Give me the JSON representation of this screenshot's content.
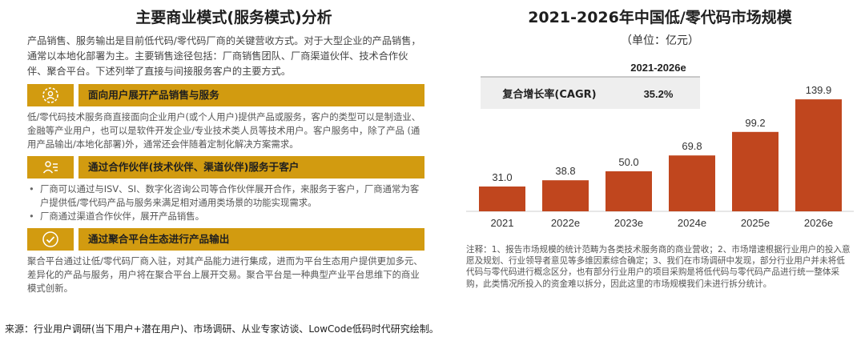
{
  "left": {
    "title": "主要商业模式(服务模式)分析",
    "intro": "产品销售、服务输出是目前低代码/零代码厂商的关键营收方式。对于大型企业的产品销售，通常以本地化部署为主。主要销售途径包括：厂商销售团队、厂商渠道伙伴、技术合作伙伴、聚合平台。下述列举了直接与间接服务客户的主要方式。",
    "sections": [
      {
        "icon": "gear-people-icon",
        "heading": "面向用户展开产品销售与服务",
        "text": "低/零代码技术服务商直接面向企业用户(或个人用户)提供产品或服务，客户的类型可以是制造业、金融等产业用户，也可以是软件开发企业/专业技术类人员等技术用户。客户服务中，除了产品 (通用产品输出/本地化部署)外，通常还会伴随着定制化解决方案需求。"
      },
      {
        "icon": "partner-icon",
        "heading": "通过合作伙伴(技术伙伴、渠道伙伴)服务于客户",
        "bullets": [
          "厂商可以通过与ISV、SI、数字化咨询公司等合作伙伴展开合作，来服务于客户，厂商通常为客户提供低/零代码产品与服务来满足相对通用类场景的功能实现需求。",
          "厂商通过渠道合作伙伴，展开产品销售。"
        ]
      },
      {
        "icon": "platform-icon",
        "heading": "通过聚合平台生态进行产品输出",
        "text": "聚合平台通过让低/零代码厂商入驻，对其产品能力进行集成，进而为平台生态用户提供更加多元、差异化的产品与服务，用户将在聚合平台上展开交易。聚合平台是一种典型产业平台思维下的商业模式创新。"
      }
    ]
  },
  "source": "来源：行业用户调研(当下用户+潜在用户)、市场调研、从业专家访谈、LowCode低码时代研究绘制。",
  "right": {
    "title": "2021-2026年中国低/零代码市场规模",
    "subtitle": "（单位：亿元）",
    "cagr_period": "2021-2026e",
    "cagr_label": "复合增长率(CAGR)",
    "cagr_value": "35.2%",
    "note": "注释：1、报告市场规模的统计范畴为各类技术服务商的商业营收；2、市场增速根据行业用户的投入意愿及规划、行业领导者意见等多维因素综合确定；3、我们在市场调研中发现，部分行业用户并未将低代码与零代码进行概念区分，也有部分行业用户的项目采购是将低代码与零代码产品进行统一整体采购，此类情况所投入的资金难以拆分，因此这里的市场规模我们未进行拆分统计。"
  },
  "colors": {
    "band": "#d29b10",
    "bar": "#c0461e",
    "cagr_box": "#eeeeee"
  },
  "chart_data": {
    "type": "bar",
    "title": "2021-2026年中国低/零代码市场规模",
    "subtitle": "（单位：亿元）",
    "categories": [
      "2021",
      "2022e",
      "2023e",
      "2024e",
      "2025e",
      "2026e"
    ],
    "values": [
      31.0,
      38.8,
      50.0,
      69.8,
      99.2,
      139.9
    ],
    "value_labels": [
      "31.0",
      "38.8",
      "50.0",
      "69.8",
      "99.2",
      "139.9"
    ],
    "ylim": [
      0,
      140
    ],
    "grid": false,
    "legend": "none"
  }
}
